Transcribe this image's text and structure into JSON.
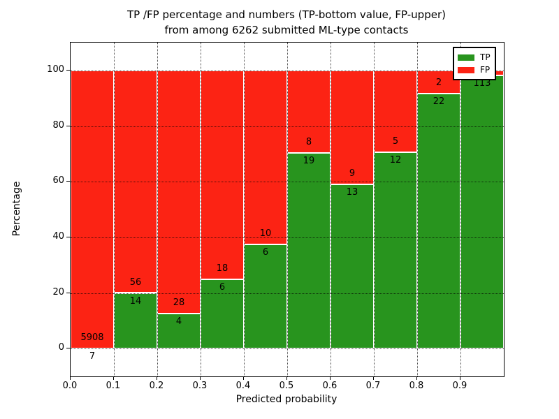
{
  "title": {
    "line1": "TP /FP percentage and numbers (TP-bottom value, FP-upper)",
    "line2": "from among 6262 submitted ML-type contacts"
  },
  "axes": {
    "xlabel": "Predicted probability",
    "ylabel": "Percentage",
    "x_tick_labels": [
      "0.0",
      "0.1",
      "0.2",
      "0.3",
      "0.4",
      "0.5",
      "0.6",
      "0.7",
      "0.8",
      "0.9"
    ],
    "x_tick_values": [
      0.0,
      0.1,
      0.2,
      0.3,
      0.4,
      0.5,
      0.6,
      0.7,
      0.8,
      0.9
    ],
    "y_tick_labels": [
      "0",
      "20",
      "40",
      "60",
      "80",
      "100"
    ],
    "y_tick_values": [
      0,
      20,
      40,
      60,
      80,
      100
    ]
  },
  "legend": {
    "position": "upper right",
    "items": [
      {
        "label": "TP",
        "color": "#28941e"
      },
      {
        "label": "FP",
        "color": "#fc2314"
      }
    ]
  },
  "colors": {
    "tp_green": "#28941e",
    "fp_red": "#fc2314",
    "grid": "#000000",
    "background": "#ffffff"
  },
  "chart_data": {
    "type": "bar",
    "stacked": true,
    "normalized_to": 100,
    "title": "TP /FP percentage and numbers (TP-bottom value, FP-upper) from among 6262 submitted ML-type contacts",
    "xlabel": "Predicted probability",
    "ylabel": "Percentage",
    "xlim": [
      0.0,
      1.0
    ],
    "ylim": [
      -10,
      110
    ],
    "grid": true,
    "bin_width": 0.1,
    "bin_starts": [
      0.0,
      0.1,
      0.2,
      0.3,
      0.4,
      0.5,
      0.6,
      0.7,
      0.8,
      0.9
    ],
    "series": [
      {
        "name": "TP",
        "color": "#28941e",
        "counts": [
          7,
          14,
          4,
          6,
          6,
          19,
          13,
          12,
          22,
          113
        ],
        "count_labels": [
          "7",
          "14",
          "4",
          "6",
          "6",
          "19",
          "13",
          "12",
          "22",
          "113"
        ],
        "pct": [
          0.12,
          20.0,
          12.5,
          25.0,
          37.5,
          70.37,
          59.09,
          70.59,
          91.67,
          98.26
        ]
      },
      {
        "name": "FP",
        "color": "#fc2314",
        "counts": [
          5908,
          56,
          28,
          18,
          10,
          8,
          9,
          5,
          2,
          null
        ],
        "count_labels": [
          "5908",
          "56",
          "28",
          "18",
          "10",
          "8",
          "9",
          "5",
          "2",
          null
        ],
        "pct": [
          99.88,
          80.0,
          87.5,
          75.0,
          62.5,
          29.63,
          40.91,
          29.41,
          8.33,
          1.74
        ]
      }
    ]
  }
}
